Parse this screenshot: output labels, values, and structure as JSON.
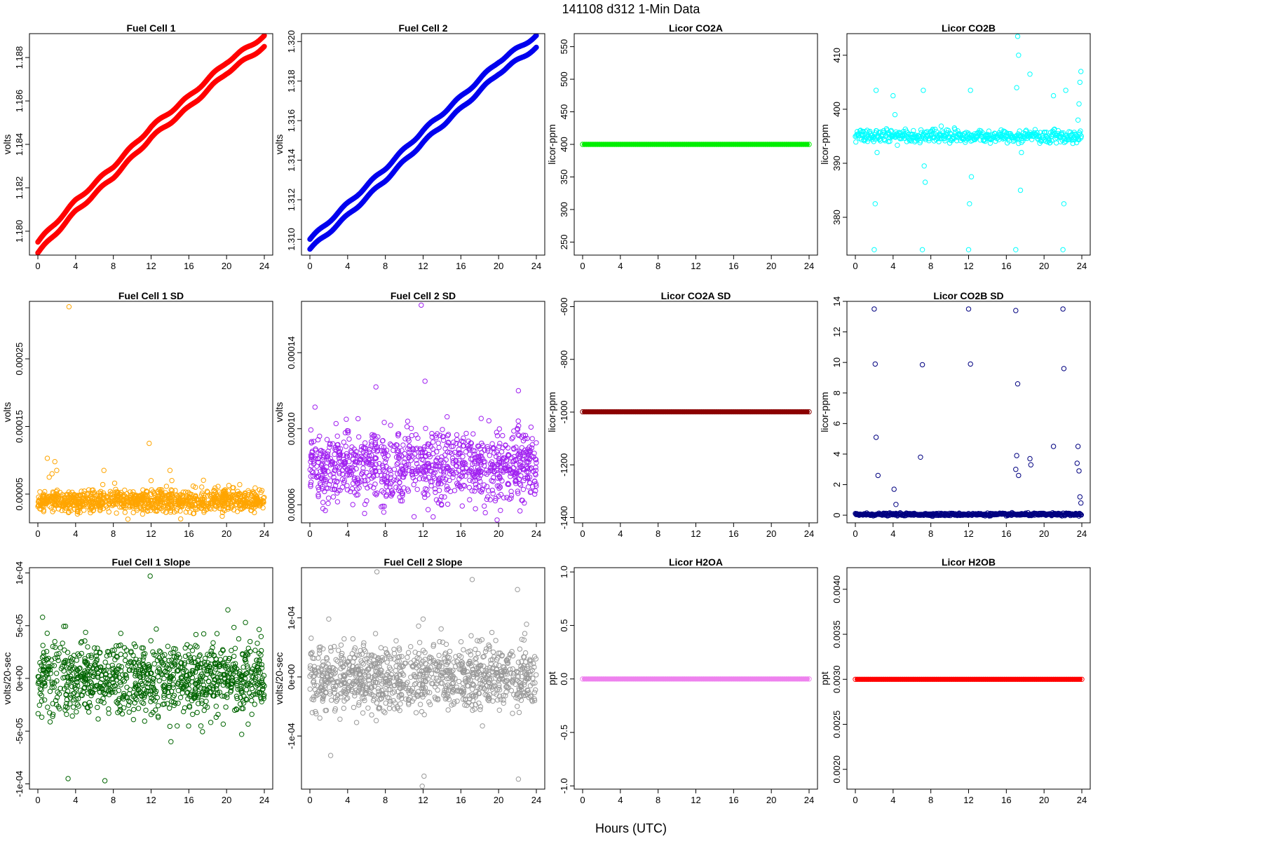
{
  "page": {
    "title": "141108   d312   1-Min Data",
    "x_axis_title": "Hours (UTC)"
  },
  "chart_data": [
    {
      "type": "scatter",
      "title": "Fuel Cell 1",
      "ylabel": "volts",
      "color": "#ff0000",
      "xlim": [
        0,
        24
      ],
      "x_ticks": [
        "0",
        "4",
        "8",
        "12",
        "16",
        "20",
        "24"
      ],
      "ylim": [
        1.1789,
        1.1891
      ],
      "y_ticks": [
        {
          "value": 1.18,
          "label": "1.180"
        },
        {
          "value": 1.182,
          "label": "1.182"
        },
        {
          "value": 1.184,
          "label": "1.184"
        },
        {
          "value": 1.186,
          "label": "1.186"
        },
        {
          "value": 1.188,
          "label": "1.188"
        }
      ],
      "pattern": "two_trend_bands",
      "series": [
        {
          "x": [
            0,
            4,
            8,
            12,
            16,
            20,
            24
          ],
          "y": [
            1.1795,
            1.1814,
            1.183,
            1.1848,
            1.1862,
            1.1878,
            1.189
          ]
        },
        {
          "x": [
            0,
            4,
            8,
            12,
            16,
            20,
            24
          ],
          "y": [
            1.179,
            1.1809,
            1.1825,
            1.1843,
            1.1857,
            1.1873,
            1.1885
          ]
        }
      ]
    },
    {
      "type": "scatter",
      "title": "Fuel Cell 2",
      "ylabel": "volts",
      "color": "#0000ee",
      "xlim": [
        0,
        24
      ],
      "x_ticks": [
        "0",
        "4",
        "8",
        "12",
        "16",
        "20",
        "24"
      ],
      "ylim": [
        1.3092,
        1.3204
      ],
      "y_ticks": [
        {
          "value": 1.31,
          "label": "1.310"
        },
        {
          "value": 1.312,
          "label": "1.312"
        },
        {
          "value": 1.314,
          "label": "1.314"
        },
        {
          "value": 1.316,
          "label": "1.316"
        },
        {
          "value": 1.318,
          "label": "1.318"
        },
        {
          "value": 1.32,
          "label": "1.320"
        }
      ],
      "pattern": "two_trend_bands",
      "series": [
        {
          "x": [
            0,
            4,
            8,
            12,
            16,
            20,
            24
          ],
          "y": [
            1.31,
            1.3118,
            1.3136,
            1.3155,
            1.3172,
            1.319,
            1.3203
          ]
        },
        {
          "x": [
            0,
            4,
            8,
            12,
            16,
            20,
            24
          ],
          "y": [
            1.3095,
            1.3112,
            1.313,
            1.3149,
            1.3166,
            1.3184,
            1.3197
          ]
        }
      ]
    },
    {
      "type": "scatter",
      "title": "Licor CO2A",
      "ylabel": "licor-ppm",
      "color": "#00ee00",
      "xlim": [
        0,
        24
      ],
      "x_ticks": [
        "0",
        "4",
        "8",
        "12",
        "16",
        "20",
        "24"
      ],
      "ylim": [
        230,
        570
      ],
      "y_ticks": [
        {
          "value": 250,
          "label": "250"
        },
        {
          "value": 300,
          "label": "300"
        },
        {
          "value": 350,
          "label": "350"
        },
        {
          "value": 400,
          "label": "400"
        },
        {
          "value": 450,
          "label": "450"
        },
        {
          "value": 500,
          "label": "500"
        },
        {
          "value": 550,
          "label": "550"
        }
      ],
      "pattern": "constant",
      "value": 400
    },
    {
      "type": "scatter",
      "title": "Licor CO2B",
      "ylabel": "licor-ppm",
      "color": "#00ffff",
      "xlim": [
        0,
        24
      ],
      "x_ticks": [
        "0",
        "4",
        "8",
        "12",
        "16",
        "20",
        "24"
      ],
      "ylim": [
        373,
        414
      ],
      "y_ticks": [
        {
          "value": 380,
          "label": "380"
        },
        {
          "value": 390,
          "label": "390"
        },
        {
          "value": 400,
          "label": "400"
        },
        {
          "value": 410,
          "label": "410"
        }
      ],
      "pattern": "baseline_with_spikes",
      "baseline": 395,
      "spread": 0.6,
      "outliers": {
        "x": [
          2.0,
          2.1,
          2.2,
          2.3,
          4.0,
          4.2,
          7.1,
          7.2,
          7.3,
          7.4,
          12.0,
          12.1,
          12.2,
          12.3,
          17.0,
          17.1,
          17.2,
          17.3,
          17.5,
          17.6,
          18.5,
          21.0,
          22.0,
          22.1,
          22.3,
          23.6,
          23.7,
          23.8,
          23.9
        ],
        "y": [
          374,
          382.5,
          403.5,
          392,
          402.5,
          399,
          374,
          403.5,
          389.5,
          386.5,
          374,
          382.5,
          403.5,
          387.5,
          374,
          404,
          413.5,
          410,
          385,
          392,
          406.5,
          402.5,
          374,
          382.5,
          403.5,
          398,
          401,
          405,
          407
        ]
      }
    },
    {
      "type": "scatter",
      "title": "Fuel Cell 1 SD",
      "ylabel": "volts",
      "color": "#ffa500",
      "xlim": [
        0,
        24
      ],
      "x_ticks": [
        "0",
        "4",
        "8",
        "12",
        "16",
        "20",
        "24"
      ],
      "ylim": [
        7.5e-06,
        0.000335
      ],
      "y_ticks": [
        {
          "value": 5e-05,
          "label": "0.00005"
        },
        {
          "value": 0.00015,
          "label": "0.00015"
        },
        {
          "value": 0.00025,
          "label": "0.00025"
        }
      ],
      "pattern": "noise_band",
      "mean": 4e-05,
      "spread": 8e-06,
      "outliers": {
        "x": [
          1.0,
          1.2,
          1.5,
          1.8,
          2.0,
          3.3,
          7.0,
          11.8,
          12.0,
          14.0,
          14.2
        ],
        "y": [
          0.000103,
          7.5e-05,
          8e-05,
          9.8e-05,
          8.5e-05,
          0.000327,
          8.5e-05,
          0.000125,
          7e-05,
          8.5e-05,
          7e-05
        ]
      }
    },
    {
      "type": "scatter",
      "title": "Fuel Cell 2 SD",
      "ylabel": "volts",
      "color": "#a020f0",
      "xlim": [
        0,
        24
      ],
      "x_ticks": [
        "0",
        "4",
        "8",
        "12",
        "16",
        "20",
        "24"
      ],
      "ylim": [
        5.05e-05,
        0.000167
      ],
      "y_ticks": [
        {
          "value": 6e-05,
          "label": "0.00006"
        },
        {
          "value": 0.0001,
          "label": "0.00010"
        },
        {
          "value": 0.00014,
          "label": "0.00014"
        }
      ],
      "pattern": "noise_band",
      "mean": 8.05e-05,
      "spread": 9.5e-06,
      "outliers": {
        "x": [
          11.8,
          12.2,
          7.0,
          22.1
        ],
        "y": [
          0.000165,
          0.000125,
          0.000122,
          0.00012
        ]
      }
    },
    {
      "type": "scatter",
      "title": "Licor CO2A SD",
      "ylabel": "licor-ppm",
      "color": "#8b0000",
      "xlim": [
        0,
        24
      ],
      "x_ticks": [
        "0",
        "4",
        "8",
        "12",
        "16",
        "20",
        "24"
      ],
      "ylim": [
        -1420,
        -580
      ],
      "y_ticks": [
        {
          "value": -1400,
          "label": "-1400"
        },
        {
          "value": -1200,
          "label": "-1200"
        },
        {
          "value": -1000,
          "label": "-1000"
        },
        {
          "value": -800,
          "label": "-800"
        },
        {
          "value": -600,
          "label": "-600"
        }
      ],
      "pattern": "constant",
      "value": -999
    },
    {
      "type": "scatter",
      "title": "Licor CO2B SD",
      "ylabel": "licor-ppm",
      "color": "#000080",
      "xlim": [
        0,
        24
      ],
      "x_ticks": [
        "0",
        "4",
        "8",
        "12",
        "16",
        "20",
        "24"
      ],
      "ylim": [
        -0.5,
        14.0
      ],
      "y_ticks": [
        {
          "value": 0,
          "label": "0"
        },
        {
          "value": 2,
          "label": "2"
        },
        {
          "value": 4,
          "label": "4"
        },
        {
          "value": 6,
          "label": "6"
        },
        {
          "value": 8,
          "label": "8"
        },
        {
          "value": 10,
          "label": "10"
        },
        {
          "value": 12,
          "label": "12"
        },
        {
          "value": 14,
          "label": "14"
        }
      ],
      "pattern": "baseline_with_spikes",
      "baseline": 0.05,
      "spread": 0.04,
      "outliers": {
        "x": [
          2.0,
          2.1,
          2.2,
          2.4,
          4.1,
          4.3,
          6.9,
          7.1,
          12.0,
          12.2,
          17.0,
          17.0,
          17.2,
          17.3,
          17.1,
          18.5,
          18.6,
          21.0,
          22.0,
          22.1,
          23.5,
          23.6,
          23.7,
          23.8,
          23.9
        ],
        "y": [
          13.5,
          9.9,
          5.1,
          2.6,
          1.7,
          0.7,
          3.8,
          9.85,
          13.5,
          9.9,
          13.4,
          3.0,
          8.6,
          2.6,
          3.9,
          3.7,
          3.3,
          4.5,
          13.5,
          9.6,
          3.4,
          4.5,
          2.9,
          1.2,
          0.8
        ]
      }
    },
    {
      "type": "scatter",
      "title": "Fuel Cell 1 Slope",
      "ylabel": "volts/20-sec",
      "color": "#006400",
      "xlim": [
        0,
        24
      ],
      "x_ticks": [
        "0",
        "4",
        "8",
        "12",
        "16",
        "20",
        "24"
      ],
      "ylim": [
        -0.000105,
        0.000105
      ],
      "y_ticks": [
        {
          "value": -0.0001,
          "label": "-1e-04"
        },
        {
          "value": -5e-05,
          "label": "-5e-05"
        },
        {
          "value": 0,
          "label": "0e+00"
        },
        {
          "value": 5e-05,
          "label": "5e-05"
        },
        {
          "value": 0.0001,
          "label": "1e-04"
        }
      ],
      "pattern": "noise_band",
      "mean": 0.0,
      "spread": 1.7e-05,
      "outliers": {
        "x": [
          11.9,
          3.2,
          7.1,
          14.1,
          21.6,
          0.5,
          22.0
        ],
        "y": [
          9.7e-05,
          -9.5e-05,
          -9.7e-05,
          -6e-05,
          -5.3e-05,
          5.8e-05,
          5.3e-05
        ]
      }
    },
    {
      "type": "scatter",
      "title": "Fuel Cell 2 Slope",
      "ylabel": "volts/20-sec",
      "color": "#999999",
      "xlim": [
        0,
        24
      ],
      "x_ticks": [
        "0",
        "4",
        "8",
        "12",
        "16",
        "20",
        "24"
      ],
      "ylim": [
        -0.00019,
        0.000185
      ],
      "y_ticks": [
        {
          "value": -0.0001,
          "label": "-1e-04"
        },
        {
          "value": 0,
          "label": "0e+00"
        },
        {
          "value": 0.0001,
          "label": "1e-04"
        }
      ],
      "pattern": "noise_band",
      "mean": 0.0,
      "spread": 2.7e-05,
      "outliers": {
        "x": [
          7.1,
          17.2,
          22.0,
          11.9,
          12.1,
          2.2,
          22.1,
          2.0,
          12.0
        ],
        "y": [
          0.000178,
          0.000165,
          0.000148,
          -0.000185,
          -0.000168,
          -0.000133,
          -0.000173,
          9.8e-05,
          9.8e-05
        ]
      }
    },
    {
      "type": "scatter",
      "title": "Licor H2OA",
      "ylabel": "ppt",
      "color": "#ee82ee",
      "xlim": [
        0,
        24
      ],
      "x_ticks": [
        "0",
        "4",
        "8",
        "12",
        "16",
        "20",
        "24"
      ],
      "ylim": [
        -1.03,
        1.04
      ],
      "y_ticks": [
        {
          "value": -1.0,
          "label": "-1.0"
        },
        {
          "value": -0.5,
          "label": "-0.5"
        },
        {
          "value": 0.0,
          "label": "0.0"
        },
        {
          "value": 0.5,
          "label": "0.5"
        },
        {
          "value": 1.0,
          "label": "1.0"
        }
      ],
      "pattern": "constant",
      "value": 0.0
    },
    {
      "type": "scatter",
      "title": "Licor H2OB",
      "ylabel": "ppt",
      "color": "#ff0000",
      "xlim": [
        0,
        24
      ],
      "x_ticks": [
        "0",
        "4",
        "8",
        "12",
        "16",
        "20",
        "24"
      ],
      "ylim": [
        0.00178,
        0.00424
      ],
      "y_ticks": [
        {
          "value": 0.002,
          "label": "0.0020"
        },
        {
          "value": 0.0025,
          "label": "0.0025"
        },
        {
          "value": 0.003,
          "label": "0.0030"
        },
        {
          "value": 0.0035,
          "label": "0.0035"
        },
        {
          "value": 0.004,
          "label": "0.0040"
        }
      ],
      "pattern": "constant",
      "value": 0.003
    }
  ]
}
